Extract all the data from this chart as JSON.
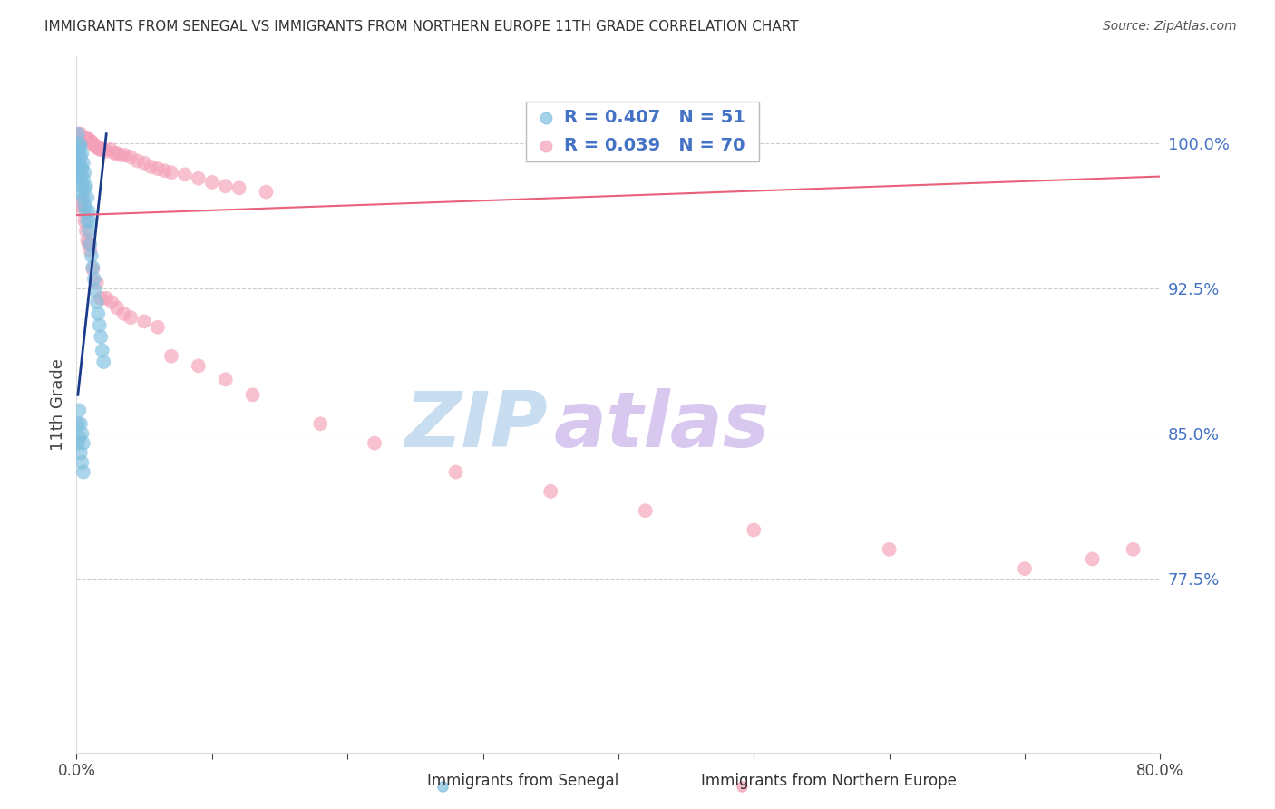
{
  "title": "IMMIGRANTS FROM SENEGAL VS IMMIGRANTS FROM NORTHERN EUROPE 11TH GRADE CORRELATION CHART",
  "source": "Source: ZipAtlas.com",
  "ylabel": "11th Grade",
  "ytick_labels": [
    "100.0%",
    "92.5%",
    "85.0%",
    "77.5%"
  ],
  "ytick_values": [
    1.0,
    0.925,
    0.85,
    0.775
  ],
  "xmin": 0.0,
  "xmax": 0.8,
  "ymin": 0.685,
  "ymax": 1.045,
  "legend_blue_R": "R = 0.407",
  "legend_blue_N": "N = 51",
  "legend_pink_R": "R = 0.039",
  "legend_pink_N": "N = 70",
  "blue_color": "#7fbfdf",
  "pink_color": "#f4a0b8",
  "blue_line_color": "#1a3a8a",
  "pink_line_color": "#e8607a",
  "legend_text_color": "#4472C4",
  "watermark_zip_color": "#c8ddf0",
  "watermark_atlas_color": "#d8c8f0",
  "watermark_zip": "ZIP",
  "watermark_atlas": "atlas",
  "grid_color": "#cccccc",
  "background_color": "#ffffff",
  "blue_scatter_x": [
    0.001,
    0.001,
    0.001,
    0.001,
    0.001,
    0.002,
    0.002,
    0.002,
    0.002,
    0.003,
    0.003,
    0.003,
    0.003,
    0.003,
    0.004,
    0.004,
    0.004,
    0.005,
    0.005,
    0.005,
    0.006,
    0.006,
    0.006,
    0.007,
    0.007,
    0.008,
    0.008,
    0.009,
    0.009,
    0.01,
    0.01,
    0.011,
    0.012,
    0.013,
    0.014,
    0.015,
    0.016,
    0.017,
    0.018,
    0.019,
    0.02,
    0.001,
    0.001,
    0.002,
    0.002,
    0.003,
    0.003,
    0.004,
    0.004,
    0.005,
    0.005
  ],
  "blue_scatter_y": [
    1.005,
    0.998,
    0.993,
    0.988,
    0.982,
    1.0,
    0.996,
    0.99,
    0.985,
    0.999,
    0.993,
    0.988,
    0.982,
    0.975,
    0.995,
    0.987,
    0.978,
    0.99,
    0.982,
    0.972,
    0.985,
    0.977,
    0.968,
    0.978,
    0.965,
    0.972,
    0.96,
    0.965,
    0.955,
    0.96,
    0.948,
    0.942,
    0.936,
    0.93,
    0.924,
    0.918,
    0.912,
    0.906,
    0.9,
    0.893,
    0.887,
    0.855,
    0.845,
    0.862,
    0.848,
    0.855,
    0.84,
    0.85,
    0.835,
    0.845,
    0.83
  ],
  "pink_scatter_x": [
    0.001,
    0.002,
    0.003,
    0.004,
    0.005,
    0.006,
    0.007,
    0.008,
    0.009,
    0.01,
    0.011,
    0.012,
    0.013,
    0.014,
    0.015,
    0.016,
    0.017,
    0.018,
    0.02,
    0.022,
    0.025,
    0.028,
    0.03,
    0.033,
    0.036,
    0.04,
    0.045,
    0.05,
    0.055,
    0.06,
    0.065,
    0.07,
    0.08,
    0.09,
    0.1,
    0.11,
    0.12,
    0.14,
    0.003,
    0.004,
    0.005,
    0.006,
    0.007,
    0.008,
    0.009,
    0.01,
    0.012,
    0.015,
    0.018,
    0.022,
    0.026,
    0.03,
    0.035,
    0.04,
    0.05,
    0.06,
    0.07,
    0.09,
    0.11,
    0.13,
    0.18,
    0.22,
    0.28,
    0.35,
    0.42,
    0.5,
    0.6,
    0.7,
    0.75,
    0.78
  ],
  "pink_scatter_y": [
    1.005,
    1.003,
    1.005,
    1.003,
    1.002,
    1.003,
    1.002,
    1.003,
    1.002,
    1.001,
    1.001,
    1.0,
    0.999,
    0.999,
    0.998,
    0.998,
    0.997,
    0.997,
    0.997,
    0.996,
    0.997,
    0.995,
    0.995,
    0.994,
    0.994,
    0.993,
    0.991,
    0.99,
    0.988,
    0.987,
    0.986,
    0.985,
    0.984,
    0.982,
    0.98,
    0.978,
    0.977,
    0.975,
    0.968,
    0.97,
    0.965,
    0.96,
    0.955,
    0.95,
    0.948,
    0.945,
    0.935,
    0.928,
    0.92,
    0.92,
    0.918,
    0.915,
    0.912,
    0.91,
    0.908,
    0.905,
    0.89,
    0.885,
    0.878,
    0.87,
    0.855,
    0.845,
    0.83,
    0.82,
    0.81,
    0.8,
    0.79,
    0.78,
    0.785,
    0.79
  ],
  "blue_trend_x": [
    0.001,
    0.022
  ],
  "blue_trend_y": [
    0.87,
    1.005
  ],
  "pink_trend_x": [
    0.0,
    0.8
  ],
  "pink_trend_y": [
    0.963,
    0.983
  ],
  "xtick_positions": [
    0.0,
    0.1,
    0.2,
    0.3,
    0.4,
    0.5,
    0.6,
    0.7,
    0.8
  ],
  "xtick_labels": [
    "0.0%",
    "",
    "",
    "",
    "",
    "",
    "",
    "",
    "80.0%"
  ]
}
